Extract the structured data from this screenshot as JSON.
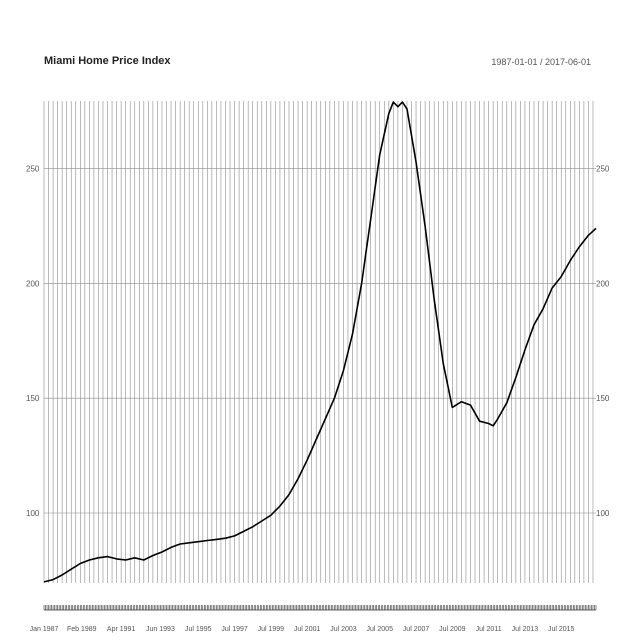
{
  "title": "Miami Home Price Index",
  "date_range": "1987-01-01 / 2017-06-01",
  "chart_data": {
    "type": "line",
    "title": "Miami Home Price Index",
    "subtitle": "1987-01-01 / 2017-06-01",
    "xlabel": "",
    "ylabel": "",
    "x_start": "1987-01",
    "x_end": "2017-06",
    "ylim": [
      69.5,
      279.5
    ],
    "yticks": [
      100,
      150,
      200,
      250
    ],
    "xtick_labels": [
      {
        "label": "Jan 1987",
        "date": "1987-01"
      },
      {
        "label": "Feb 1989",
        "date": "1989-02"
      },
      {
        "label": "Apr 1991",
        "date": "1991-04"
      },
      {
        "label": "Jun 1993",
        "date": "1993-06"
      },
      {
        "label": "Jul 1995",
        "date": "1995-07"
      },
      {
        "label": "Jul 1997",
        "date": "1997-07"
      },
      {
        "label": "Jul 1999",
        "date": "1999-07"
      },
      {
        "label": "Jul 2001",
        "date": "2001-07"
      },
      {
        "label": "Jul 2003",
        "date": "2003-07"
      },
      {
        "label": "Jul 2005",
        "date": "2005-07"
      },
      {
        "label": "Jul 2007",
        "date": "2007-07"
      },
      {
        "label": "Jul 2009",
        "date": "2009-07"
      },
      {
        "label": "Jul 2011",
        "date": "2011-07"
      },
      {
        "label": "Jul 2013",
        "date": "2013-07"
      },
      {
        "label": "Jul 2015",
        "date": "2015-07"
      }
    ],
    "grid": true,
    "series": [
      {
        "color": "#000000",
        "points": [
          [
            "1987-01",
            70.0
          ],
          [
            "1987-07",
            71.0
          ],
          [
            "1988-01",
            73.0
          ],
          [
            "1988-07",
            75.5
          ],
          [
            "1989-01",
            78.0
          ],
          [
            "1989-07",
            79.5
          ],
          [
            "1990-01",
            80.5
          ],
          [
            "1990-07",
            81.0
          ],
          [
            "1991-01",
            80.0
          ],
          [
            "1991-07",
            79.5
          ],
          [
            "1992-01",
            80.5
          ],
          [
            "1992-07",
            79.5
          ],
          [
            "1993-01",
            81.5
          ],
          [
            "1993-07",
            83.0
          ],
          [
            "1994-01",
            85.0
          ],
          [
            "1994-07",
            86.5
          ],
          [
            "1995-01",
            87.0
          ],
          [
            "1995-07",
            87.5
          ],
          [
            "1996-01",
            88.0
          ],
          [
            "1996-07",
            88.5
          ],
          [
            "1997-01",
            89.0
          ],
          [
            "1997-07",
            90.0
          ],
          [
            "1998-01",
            92.0
          ],
          [
            "1998-07",
            94.0
          ],
          [
            "1999-01",
            96.5
          ],
          [
            "1999-07",
            99.0
          ],
          [
            "2000-01",
            103.0
          ],
          [
            "2000-07",
            108.0
          ],
          [
            "2001-01",
            115.0
          ],
          [
            "2001-07",
            123.0
          ],
          [
            "2002-01",
            132.0
          ],
          [
            "2002-07",
            141.0
          ],
          [
            "2003-01",
            150.0
          ],
          [
            "2003-07",
            162.0
          ],
          [
            "2004-01",
            178.0
          ],
          [
            "2004-07",
            200.0
          ],
          [
            "2005-01",
            228.0
          ],
          [
            "2005-07",
            256.0
          ],
          [
            "2006-01",
            274.0
          ],
          [
            "2006-04",
            279.0
          ],
          [
            "2006-07",
            277.0
          ],
          [
            "2006-10",
            279.0
          ],
          [
            "2007-01",
            276.0
          ],
          [
            "2007-07",
            253.0
          ],
          [
            "2008-01",
            225.0
          ],
          [
            "2008-07",
            193.0
          ],
          [
            "2009-01",
            165.0
          ],
          [
            "2009-07",
            146.0
          ],
          [
            "2010-01",
            148.5
          ],
          [
            "2010-07",
            147.0
          ],
          [
            "2011-01",
            140.0
          ],
          [
            "2011-07",
            139.0
          ],
          [
            "2011-10",
            138.0
          ],
          [
            "2012-01",
            141.0
          ],
          [
            "2012-07",
            148.0
          ],
          [
            "2013-01",
            159.0
          ],
          [
            "2013-07",
            171.0
          ],
          [
            "2014-01",
            182.0
          ],
          [
            "2014-07",
            189.0
          ],
          [
            "2015-01",
            198.0
          ],
          [
            "2015-07",
            203.0
          ],
          [
            "2016-01",
            210.0
          ],
          [
            "2016-07",
            216.0
          ],
          [
            "2017-01",
            221.0
          ],
          [
            "2017-06",
            224.0
          ]
        ]
      }
    ]
  }
}
